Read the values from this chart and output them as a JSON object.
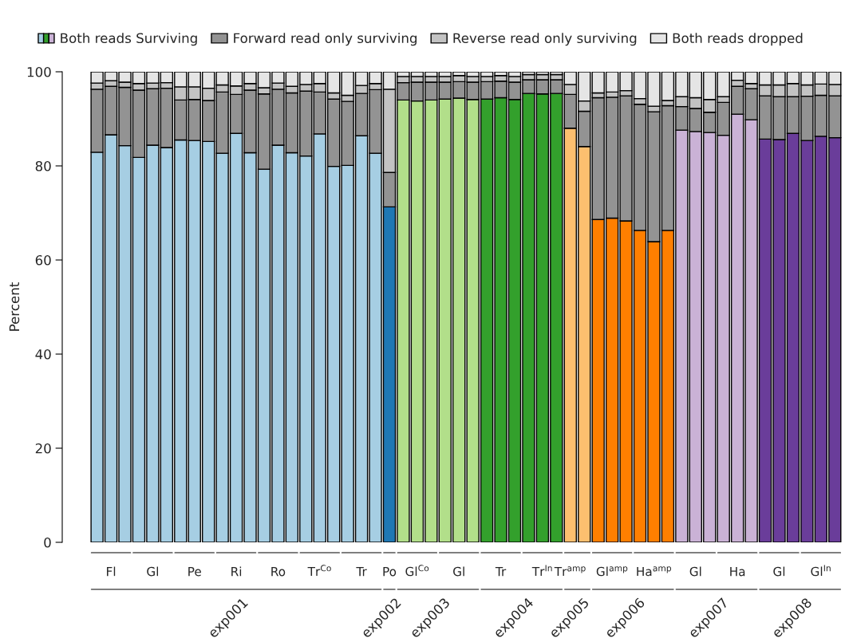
{
  "chart_data": {
    "type": "bar",
    "ylabel": "Percent",
    "stacked": true,
    "legend": "top",
    "ylim": [
      0,
      100
    ],
    "yticks": [
      0,
      20,
      40,
      60,
      80,
      100
    ],
    "categories": [
      null,
      "Fl",
      null,
      null,
      "Gl",
      null,
      null,
      "Pe",
      null,
      null,
      "Ri",
      null,
      null,
      "Ro",
      null,
      null,
      "Tr$^{Co}$",
      null,
      null,
      "Tr",
      null,
      "Po",
      null,
      "Gl$^{Co}$",
      null,
      null,
      "Gl",
      null,
      null,
      "Tr",
      null,
      null,
      "Tr$^{In}$",
      null,
      "Tr$^{amp}$",
      null,
      null,
      "Gl$^{amp}$",
      null,
      null,
      "Ha$^{amp}$",
      null,
      null,
      "Gl",
      null,
      null,
      "Ha",
      null,
      null,
      "Gl",
      null,
      null,
      "Gl$^{In}$",
      null
    ],
    "series": [
      {
        "name": "Both reads Surviving",
        "colors": [
          "#a6cee3",
          "#a6cee3",
          "#a6cee3",
          "#a6cee3",
          "#a6cee3",
          "#a6cee3",
          "#a6cee3",
          "#a6cee3",
          "#a6cee3",
          "#a6cee3",
          "#a6cee3",
          "#a6cee3",
          "#a6cee3",
          "#a6cee3",
          "#a6cee3",
          "#a6cee3",
          "#a6cee3",
          "#a6cee3",
          "#a6cee3",
          "#a6cee3",
          "#a6cee3",
          "#1f78b4",
          "#b2df8a",
          "#b2df8a",
          "#b2df8a",
          "#b2df8a",
          "#b2df8a",
          "#b2df8a",
          "#33a02c",
          "#33a02c",
          "#33a02c",
          "#33a02c",
          "#33a02c",
          "#33a02c",
          "#fdbf6f",
          "#fdbf6f",
          "#ff7f00",
          "#ff7f00",
          "#ff7f00",
          "#ff7f00",
          "#ff7f00",
          "#ff7f00",
          "#cab2d6",
          "#cab2d6",
          "#cab2d6",
          "#cab2d6",
          "#cab2d6",
          "#cab2d6",
          "#6a3d9a",
          "#6a3d9a",
          "#6a3d9a",
          "#6a3d9a",
          "#6a3d9a",
          "#6a3d9a"
        ],
        "values": [
          82.9,
          86.6,
          84.3,
          81.8,
          84.4,
          83.9,
          85.5,
          85.4,
          85.2,
          82.7,
          86.9,
          82.8,
          79.3,
          84.4,
          82.8,
          82.1,
          86.8,
          79.9,
          80.1,
          86.4,
          82.7,
          71.3,
          94.0,
          93.8,
          94.0,
          94.2,
          94.4,
          94.1,
          94.2,
          94.5,
          94.1,
          95.4,
          95.3,
          95.4,
          88.0,
          84.1,
          68.6,
          68.9,
          68.3,
          66.3,
          63.9,
          66.3,
          87.6,
          87.3,
          87.1,
          86.5,
          91.0,
          89.8,
          85.7,
          85.6,
          86.9,
          85.4,
          86.3,
          86.0
        ]
      },
      {
        "name": "Forward read only surviving",
        "color": "#939393",
        "values": [
          13.4,
          10.3,
          12.4,
          14.3,
          12.0,
          12.6,
          8.5,
          8.7,
          8.7,
          13.0,
          8.3,
          13.3,
          16.0,
          11.9,
          12.7,
          13.8,
          8.9,
          14.3,
          13.6,
          9.0,
          13.5,
          7.3,
          3.7,
          4.0,
          3.8,
          3.6,
          3.5,
          3.7,
          3.7,
          3.5,
          3.7,
          2.9,
          3.0,
          2.9,
          7.2,
          7.5,
          25.9,
          25.7,
          26.6,
          26.8,
          27.6,
          26.5,
          5.0,
          4.9,
          4.3,
          7.0,
          5.9,
          6.6,
          9.2,
          9.1,
          7.8,
          9.4,
          8.7,
          8.9
        ]
      },
      {
        "name": "Reverse read only surviving",
        "color": "#c3c3c3",
        "values": [
          1.3,
          1.2,
          1.1,
          1.4,
          1.2,
          1.2,
          2.8,
          2.7,
          2.6,
          1.5,
          1.8,
          1.4,
          1.3,
          1.3,
          1.4,
          1.4,
          1.8,
          1.3,
          1.3,
          1.7,
          1.3,
          17.7,
          1.3,
          1.2,
          1.2,
          1.2,
          1.3,
          1.2,
          1.1,
          1.2,
          1.2,
          1.1,
          1.1,
          1.1,
          2.1,
          2.2,
          1.0,
          1.1,
          1.1,
          1.2,
          1.2,
          1.1,
          2.1,
          2.3,
          2.7,
          1.2,
          1.3,
          1.1,
          2.3,
          2.5,
          2.8,
          2.4,
          2.4,
          2.4
        ]
      },
      {
        "name": "Both reads dropped",
        "color": "#e5e5e5",
        "values": [
          2.4,
          1.9,
          2.2,
          2.5,
          2.4,
          2.3,
          3.2,
          3.2,
          3.5,
          2.8,
          3.0,
          2.5,
          3.4,
          2.4,
          3.1,
          2.7,
          2.5,
          4.5,
          5.0,
          2.9,
          2.5,
          3.7,
          1.0,
          1.0,
          1.0,
          1.0,
          0.8,
          1.0,
          1.0,
          0.8,
          1.0,
          0.6,
          0.6,
          0.6,
          2.7,
          6.2,
          4.5,
          4.3,
          4.0,
          5.7,
          7.3,
          6.1,
          5.3,
          5.5,
          5.9,
          5.3,
          1.8,
          2.5,
          2.8,
          2.8,
          2.5,
          2.8,
          2.6,
          2.7
        ]
      }
    ],
    "annotations": [
      "exp001",
      "exp002",
      "exp003",
      "exp004",
      "exp005",
      "exp006",
      "exp007",
      "exp008"
    ]
  }
}
